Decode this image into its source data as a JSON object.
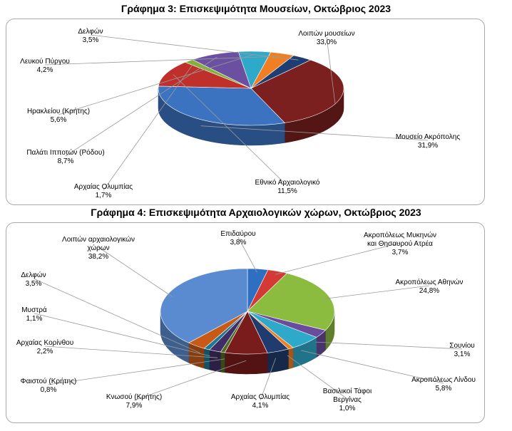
{
  "chart_data": [
    {
      "type": "pie",
      "title": "Γράφημα 3: Επισκεψιμότητα Μουσείων, Οκτώβριος 2023",
      "categories": [
        "Λοιπών μουσείων",
        "Μουσείο Ακρόπολης",
        "Εθνικό Αρχαιολογικό",
        "Αρχαίας Ολυμπίας",
        "Παλάτι Ιπποτών (Ρόδου)",
        "Ηρακλείου (Κρήτης)",
        "Λευκού Πύργου",
        "Δελφών"
      ],
      "values": [
        33.0,
        31.9,
        11.5,
        1.7,
        8.7,
        5.6,
        4.2,
        3.5
      ],
      "value_labels": [
        "33,0%",
        "31,9%",
        "11,5%",
        "1,7%",
        "8,7%",
        "5,6%",
        "4,2%",
        "3,5%"
      ],
      "colors": [
        "#7b1f1f",
        "#3b73c0",
        "#c0302b",
        "#86b03c",
        "#6b4fa0",
        "#2fa9c9",
        "#f07f23",
        "#1e3e73"
      ],
      "pie_3d": true
    },
    {
      "type": "pie",
      "title": "Γράφημα 4: Επισκεψιμότητα Αρχαιολογικών χώρων, Οκτώβριος 2023",
      "categories": [
        "Επιδαύρου",
        "Ακροπόλεως Μυκηνών και Θησαυρού Ατρέα",
        "Ακροπόλεως Αθηνών",
        "Σουνίου",
        "Ακροπόλεως Λίνδου",
        "Βασιλικοί Τάφοι Βεργίνας",
        "Αρχαίας Ολυμπίας",
        "Κνωσού (Κρήτης)",
        "Φαιστού (Κρήτης)",
        "Αρχαίας Κορίνθου",
        "Μυστρά",
        "Δελφών",
        "Λοιπών αρχαιολογικών χώρων"
      ],
      "values": [
        3.8,
        3.7,
        24.8,
        3.1,
        5.8,
        1.0,
        4.1,
        7.9,
        0.8,
        2.2,
        1.1,
        3.5,
        38.2
      ],
      "value_labels": [
        "3,8%",
        "3,7%",
        "24,8%",
        "3,1%",
        "5,8%",
        "1,0%",
        "4,1%",
        "7,9%",
        "0,8%",
        "2,2%",
        "1,1%",
        "3,5%",
        "38,2%"
      ],
      "colors": [
        "#2f6fc1",
        "#d43a35",
        "#8bbb3f",
        "#6a4c9c",
        "#2fa9c9",
        "#f07f23",
        "#203c6e",
        "#7a1c1c",
        "#4f6b25",
        "#3f2d66",
        "#1d7a95",
        "#c75a16",
        "#5a8bd0"
      ],
      "pie_3d": true
    }
  ]
}
